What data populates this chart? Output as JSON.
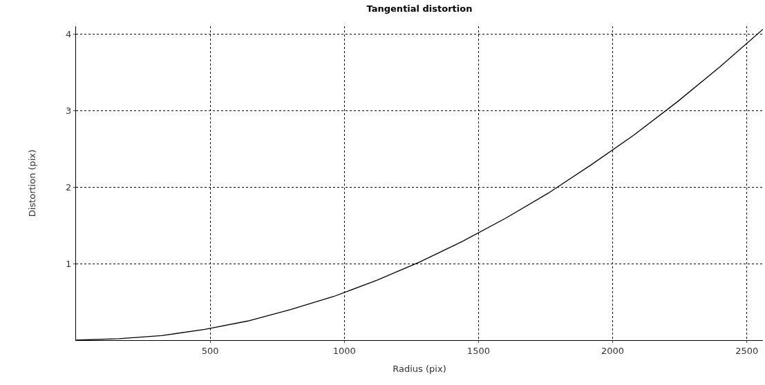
{
  "chart_data": {
    "type": "line",
    "title": "Tangential distortion",
    "xlabel": "Radius (pix)",
    "ylabel": "Distortion (pix)",
    "x": [
      0,
      160,
      320,
      480,
      640,
      800,
      960,
      1120,
      1280,
      1440,
      1600,
      1760,
      1920,
      2080,
      2240,
      2400,
      2560
    ],
    "series": [
      {
        "color": "#000000",
        "values": [
          0,
          0.02,
          0.06,
          0.14,
          0.25,
          0.4,
          0.57,
          0.78,
          1.02,
          1.29,
          1.59,
          1.92,
          2.29,
          2.68,
          3.11,
          3.57,
          4.06
        ]
      }
    ],
    "xlim": [
      0,
      2560
    ],
    "ylim": [
      0,
      4.1
    ],
    "xticks": [
      500,
      1000,
      1500,
      2000,
      2500
    ],
    "yticks": [
      1,
      2,
      3,
      4
    ],
    "grid": true,
    "marker": "none",
    "line_style": "solid"
  }
}
